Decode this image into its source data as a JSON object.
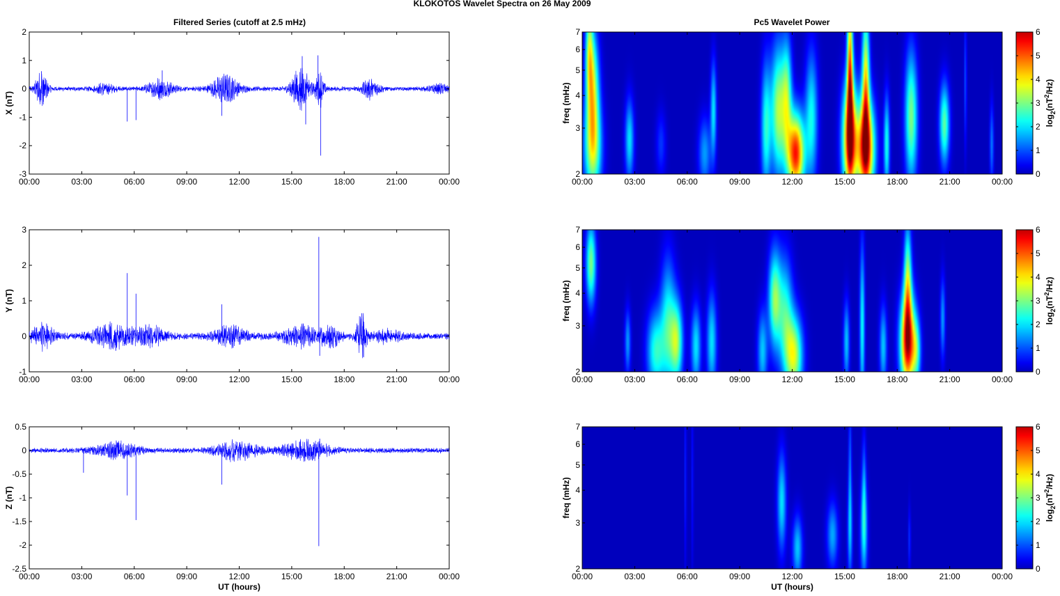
{
  "figure": {
    "title": "KLOKOTOS Wavelet Spectra on 26 May       2009",
    "left_title": "Filtered Series (cutoff at 2.5 mHz)",
    "right_title": "Pc5 Wavelet Power",
    "xlabel": "UT (hours)"
  },
  "colors": {
    "trace": "#0000ff",
    "background_power": "#00008f"
  },
  "chart_data": [
    {
      "type": "line",
      "component": "X",
      "ylabel": "X (nT)",
      "xlim": [
        0,
        24
      ],
      "ylim": [
        -3,
        2
      ],
      "xticks": [
        "00:00",
        "03:00",
        "06:00",
        "09:00",
        "12:00",
        "15:00",
        "18:00",
        "21:00",
        "00:00"
      ],
      "yticks": [
        "2",
        "1",
        "0",
        "-1",
        "-2",
        "-3"
      ],
      "yticks_values": [
        2,
        1,
        0,
        -1,
        -2,
        -3
      ],
      "baseline_noise": 0.06,
      "bursts": [
        [
          0.7,
          0.35,
          0.45
        ],
        [
          4.3,
          0.6,
          0.12
        ],
        [
          7.5,
          0.7,
          0.25
        ],
        [
          11.2,
          0.8,
          0.35
        ],
        [
          15.5,
          0.5,
          0.6
        ],
        [
          16.6,
          0.25,
          0.45
        ],
        [
          19.5,
          0.5,
          0.25
        ],
        [
          23.5,
          0.6,
          0.1
        ]
      ],
      "spikes": [
        [
          0.7,
          0.62
        ],
        [
          0.8,
          -0.55
        ],
        [
          5.6,
          -1.15
        ],
        [
          6.1,
          -1.1
        ],
        [
          11.0,
          -0.95
        ],
        [
          15.6,
          1.15
        ],
        [
          15.8,
          -1.25
        ],
        [
          16.5,
          1.18
        ],
        [
          16.65,
          -2.35
        ],
        [
          7.6,
          0.65
        ]
      ]
    },
    {
      "type": "line",
      "component": "Y",
      "ylabel": "Y (nT)",
      "xlim": [
        0,
        24
      ],
      "ylim": [
        -1,
        3
      ],
      "xticks": [
        "00:00",
        "03:00",
        "06:00",
        "09:00",
        "12:00",
        "15:00",
        "18:00",
        "21:00",
        "00:00"
      ],
      "yticks": [
        "3",
        "2",
        "1",
        "0",
        "-1"
      ],
      "yticks_values": [
        3,
        2,
        1,
        0,
        -1
      ],
      "baseline_noise": 0.07,
      "bursts": [
        [
          0.8,
          0.6,
          0.25
        ],
        [
          4.8,
          1.2,
          0.25
        ],
        [
          7.0,
          0.8,
          0.2
        ],
        [
          11.5,
          0.9,
          0.2
        ],
        [
          15.5,
          1.0,
          0.2
        ],
        [
          17.2,
          0.6,
          0.2
        ],
        [
          19.0,
          0.3,
          0.45
        ],
        [
          20.5,
          0.8,
          0.12
        ]
      ],
      "spikes": [
        [
          5.6,
          1.78
        ],
        [
          6.1,
          1.2
        ],
        [
          11.0,
          0.9
        ],
        [
          16.55,
          2.8
        ],
        [
          16.6,
          -0.55
        ],
        [
          19.0,
          0.65
        ],
        [
          19.1,
          -0.58
        ]
      ]
    },
    {
      "type": "line",
      "component": "Z",
      "ylabel": "Z (nT)",
      "xlim": [
        0,
        24
      ],
      "ylim": [
        -2.5,
        0.5
      ],
      "xticks": [
        "00:00",
        "03:00",
        "06:00",
        "09:00",
        "12:00",
        "15:00",
        "18:00",
        "21:00",
        "00:00"
      ],
      "yticks": [
        "0.5",
        "0",
        "-0.5",
        "-1",
        "-1.5",
        "-2",
        "-2.5"
      ],
      "yticks_values": [
        0.5,
        0,
        -0.5,
        -1,
        -1.5,
        -2,
        -2.5
      ],
      "baseline_noise": 0.04,
      "bursts": [
        [
          5.0,
          1.2,
          0.12
        ],
        [
          11.8,
          1.2,
          0.15
        ],
        [
          15.8,
          1.3,
          0.15
        ]
      ],
      "spikes": [
        [
          3.1,
          -0.47
        ],
        [
          5.6,
          -0.95
        ],
        [
          6.1,
          -1.47
        ],
        [
          11.0,
          -0.72
        ],
        [
          16.55,
          -2.02
        ],
        [
          16.6,
          0.25
        ]
      ]
    },
    {
      "type": "heatmap",
      "component": "X",
      "ylabel": "freq (mHz)",
      "colorbar_label": "log2(nT2/Hz)",
      "colorbar_ticks": [
        "6",
        "5",
        "4",
        "3",
        "2",
        "1",
        "0"
      ],
      "clim": [
        0,
        6
      ],
      "xlim": [
        0,
        24
      ],
      "ylim": [
        2,
        7
      ],
      "yscale": "log",
      "xticks": [
        "00:00",
        "03:00",
        "06:00",
        "09:00",
        "12:00",
        "15:00",
        "18:00",
        "21:00",
        "00:00"
      ],
      "yticks": [
        "7",
        "6",
        "5",
        "4",
        "3",
        "2"
      ],
      "yticks_values": [
        7,
        6,
        5,
        4,
        3,
        2
      ],
      "blobs": [
        [
          0.6,
          2.5,
          0.35,
          0.3,
          3.2
        ],
        [
          0.6,
          4.3,
          0.25,
          0.35,
          3.2
        ],
        [
          0.4,
          6.0,
          0.15,
          0.3,
          2.5
        ],
        [
          2.7,
          2.7,
          0.18,
          0.25,
          2.0
        ],
        [
          4.5,
          2.6,
          0.2,
          0.2,
          0.8
        ],
        [
          7.0,
          2.4,
          0.25,
          0.22,
          1.5
        ],
        [
          7.5,
          3.5,
          0.12,
          0.3,
          2.0
        ],
        [
          10.5,
          3.0,
          0.2,
          0.4,
          2.3
        ],
        [
          11.2,
          3.5,
          0.3,
          0.4,
          3.3
        ],
        [
          11.7,
          4.0,
          0.2,
          0.35,
          2.6
        ],
        [
          12.2,
          2.4,
          0.35,
          0.25,
          5.5
        ],
        [
          13.1,
          3.3,
          0.25,
          0.4,
          2.2
        ],
        [
          15.3,
          2.7,
          0.3,
          0.35,
          5.6
        ],
        [
          15.3,
          5.0,
          0.12,
          0.5,
          4.6
        ],
        [
          16.2,
          2.5,
          0.35,
          0.3,
          5.8
        ],
        [
          16.2,
          4.5,
          0.15,
          0.45,
          3.8
        ],
        [
          17.4,
          2.6,
          0.12,
          0.3,
          2.3
        ],
        [
          18.8,
          3.3,
          0.25,
          0.4,
          3.0
        ],
        [
          20.7,
          3.1,
          0.2,
          0.25,
          2.8
        ],
        [
          23.4,
          2.6,
          0.08,
          0.25,
          1.3
        ],
        [
          21.9,
          4.5,
          0.05,
          0.4,
          1.0
        ]
      ]
    },
    {
      "type": "heatmap",
      "component": "Y",
      "ylabel": "freq (mHz)",
      "colorbar_label": "log2(nT2/Hz)",
      "colorbar_ticks": [
        "6",
        "5",
        "4",
        "3",
        "2",
        "1",
        "0"
      ],
      "clim": [
        0,
        6
      ],
      "xlim": [
        0,
        24
      ],
      "ylim": [
        2,
        7
      ],
      "yscale": "log",
      "xticks": [
        "00:00",
        "03:00",
        "06:00",
        "09:00",
        "12:00",
        "15:00",
        "18:00",
        "21:00",
        "00:00"
      ],
      "yticks": [
        "7",
        "6",
        "5",
        "4",
        "3",
        "2"
      ],
      "yticks_values": [
        7,
        6,
        5,
        4,
        3,
        2
      ],
      "blobs": [
        [
          0.5,
          5.2,
          0.2,
          0.25,
          3.0
        ],
        [
          2.6,
          2.6,
          0.12,
          0.2,
          1.5
        ],
        [
          4.2,
          2.4,
          0.35,
          0.25,
          2.4
        ],
        [
          4.9,
          3.0,
          0.3,
          0.4,
          2.3
        ],
        [
          5.4,
          2.6,
          0.25,
          0.25,
          3.0
        ],
        [
          6.5,
          2.5,
          0.2,
          0.25,
          2.0
        ],
        [
          7.4,
          2.6,
          0.2,
          0.3,
          2.0
        ],
        [
          10.3,
          2.4,
          0.2,
          0.25,
          1.8
        ],
        [
          11.0,
          3.8,
          0.25,
          0.3,
          3.0
        ],
        [
          11.6,
          3.3,
          0.3,
          0.35,
          2.3
        ],
        [
          12.1,
          2.3,
          0.35,
          0.25,
          3.5
        ],
        [
          15.1,
          2.6,
          0.12,
          0.25,
          1.8
        ],
        [
          16.0,
          3.0,
          0.1,
          0.5,
          2.2
        ],
        [
          17.2,
          2.5,
          0.15,
          0.25,
          1.8
        ],
        [
          18.6,
          2.6,
          0.3,
          0.3,
          5.8
        ],
        [
          18.6,
          4.5,
          0.15,
          0.35,
          3.0
        ],
        [
          19.1,
          2.4,
          0.18,
          0.2,
          2.0
        ],
        [
          20.6,
          3.2,
          0.1,
          0.25,
          1.5
        ]
      ]
    },
    {
      "type": "heatmap",
      "component": "Z",
      "ylabel": "freq (mHz)",
      "colorbar_label": "log2(nT2/Hz)",
      "colorbar_ticks": [
        "6",
        "5",
        "4",
        "3",
        "2",
        "1",
        "0"
      ],
      "clim": [
        0,
        6
      ],
      "xlim": [
        0,
        24
      ],
      "ylim": [
        2,
        7
      ],
      "yscale": "log",
      "xticks": [
        "00:00",
        "03:00",
        "06:00",
        "09:00",
        "12:00",
        "15:00",
        "18:00",
        "21:00",
        "00:00"
      ],
      "yticks": [
        "7",
        "6",
        "5",
        "4",
        "3",
        "2"
      ],
      "yticks_values": [
        7,
        6,
        5,
        4,
        3,
        2
      ],
      "blobs": [
        [
          11.4,
          3.6,
          0.18,
          0.3,
          2.0
        ],
        [
          12.3,
          2.4,
          0.2,
          0.2,
          1.8
        ],
        [
          14.3,
          2.7,
          0.22,
          0.2,
          1.6
        ],
        [
          15.3,
          2.8,
          0.1,
          0.3,
          1.6
        ],
        [
          15.3,
          5.0,
          0.06,
          0.4,
          1.1
        ],
        [
          16.1,
          2.8,
          0.15,
          0.3,
          1.8
        ],
        [
          16.1,
          4.0,
          0.08,
          0.35,
          1.2
        ],
        [
          18.7,
          2.6,
          0.05,
          0.2,
          0.8
        ],
        [
          5.9,
          4.5,
          0.04,
          0.6,
          0.7
        ],
        [
          6.3,
          4.5,
          0.04,
          0.6,
          0.6
        ]
      ]
    }
  ]
}
